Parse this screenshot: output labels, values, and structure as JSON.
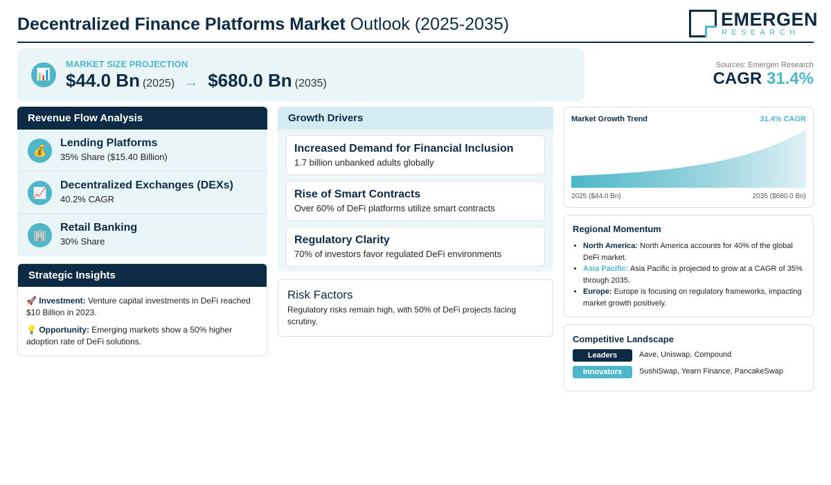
{
  "header": {
    "title_bold": "Decentralized Finance Platforms Market",
    "title_light": "Outlook (2025-2035)",
    "logo_name": "EMERGEN",
    "logo_sub": "RESEARCH"
  },
  "projection": {
    "icon": "bar-chart-icon",
    "label": "MARKET SIZE PROJECTION",
    "start_value": "$44.0 Bn",
    "start_year": "(2025)",
    "arrow": "→",
    "end_value": "$680.0 Bn",
    "end_year": "(2035)"
  },
  "sources": "Sources: Emergen Research",
  "cagr": {
    "label": "CAGR",
    "value": "31.4%"
  },
  "revenue": {
    "title": "Revenue Flow Analysis",
    "items": [
      {
        "icon": "money-bag-icon",
        "glyph": "💰",
        "name": "Lending Platforms",
        "detail": "35% Share ($15.40 Billion)"
      },
      {
        "icon": "chart-up-icon",
        "glyph": "📈",
        "name": "Decentralized Exchanges (DEXs)",
        "detail": "40.2% CAGR"
      },
      {
        "icon": "office-building-icon",
        "glyph": "🏢",
        "name": "Retail Banking",
        "detail": "30% Share"
      }
    ]
  },
  "strategic": {
    "title": "Strategic Insights",
    "items": [
      {
        "icon": "rocket-icon",
        "glyph": "🚀",
        "label": "Investment:",
        "text": "Venture capital investments in DeFi reached $10 Billion in 2023."
      },
      {
        "icon": "lightbulb-icon",
        "glyph": "💡",
        "label": "Opportunity:",
        "text": "Emerging markets show a 50% higher adoption rate of DeFi solutions."
      }
    ]
  },
  "drivers": {
    "title": "Growth Drivers",
    "items": [
      {
        "title": "Increased Demand for Financial Inclusion",
        "detail": "1.7 billion unbanked adults globally"
      },
      {
        "title": "Rise of Smart Contracts",
        "detail": "Over 60% of DeFi platforms utilize smart contracts"
      },
      {
        "title": "Regulatory Clarity",
        "detail": "70% of investors favor regulated DeFi environments"
      }
    ]
  },
  "risk": {
    "title": "Risk Factors",
    "text": "Regulatory risks remain high, with 50% of DeFi projects facing scrutiny."
  },
  "trend": {
    "title": "Market Growth Trend",
    "cagr_label": "31.4% CAGR",
    "x_start_label": "2025 ($44.0 Bn)",
    "x_end_label": "2035 ($680.0 Bn)"
  },
  "chart_data": {
    "type": "area",
    "title": "Market Growth Trend",
    "x": [
      2025,
      2035
    ],
    "series": [
      {
        "values": [
          44.0,
          680.0
        ]
      }
    ],
    "area_color": "#4db6c9"
  },
  "regional": {
    "title": "Regional Momentum",
    "items": [
      {
        "region": "North America:",
        "text": "North America accounts for 40% of the global DeFi market.",
        "color": "#0d2b45"
      },
      {
        "region": "Asia Pacific:",
        "text": "Asia Pacific is projected to grow at a CAGR of 35% through 2035.",
        "color": "#4db6c9"
      },
      {
        "region": "Europe:",
        "text": "Europe is focusing on regulatory frameworks, impacting market growth positively.",
        "color": "#0d2b45"
      }
    ]
  },
  "competitive": {
    "title": "Competitive Landscape",
    "rows": [
      {
        "tag": "Leaders",
        "names": "Aave, Uniswap, Compound"
      },
      {
        "tag": "Innovators",
        "names": "SushiSwap, Yearn Finance, PancakeSwap"
      }
    ]
  },
  "colors": {
    "navy": "#0d2b45",
    "teal": "#4db6c9",
    "light_bg": "#eaf5f8"
  }
}
